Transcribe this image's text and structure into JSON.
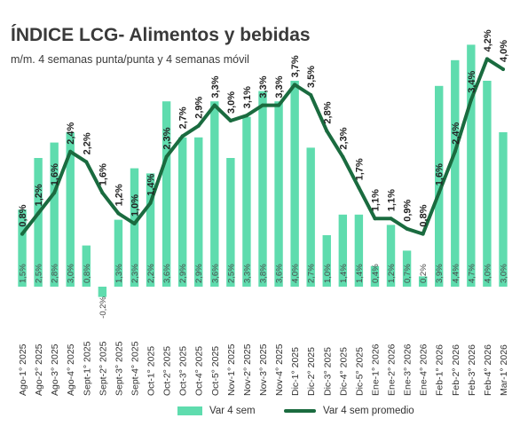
{
  "title": "ÍNDICE LCG- Alimentos y bebidas",
  "subtitle": "m/m. 4 semanas punta/punta y 4 semanas móvil",
  "colors": {
    "bar": "#5fdcae",
    "line": "#1a6b3f",
    "text": "#333333"
  },
  "chart_data": {
    "type": "bar",
    "categories": [
      "Ago-1° 2025",
      "Ago-2° 2025",
      "Ago-3° 2025",
      "Ago-4° 2025",
      "Sept-1° 2025",
      "Sept-2° 2025",
      "Sept-3° 2025",
      "Sept-4° 2025",
      "Oct-1° 2025",
      "Oct-2° 2025",
      "Oct-3° 2025",
      "Oct-4° 2025",
      "Oct-5° 2025",
      "Nov-1° 2025",
      "Nov-2° 2025",
      "Nov-3° 2025",
      "Nov-4° 2025",
      "Dic-1° 2025",
      "Dic-2° 2025",
      "Dic-3° 2025",
      "Dic-4° 2025",
      "Dic-5° 2025",
      "Ene-1° 2026",
      "Ene-2° 2026",
      "Ene-3° 2026",
      "Ene-4° 2026",
      "Feb-1° 2026",
      "Feb-2° 2026",
      "Feb-3° 2026",
      "Feb-4° 2026",
      "Mar-1° 2026"
    ],
    "series": [
      {
        "name": "Var 4 sem",
        "type": "bar",
        "values": [
          1.5,
          2.5,
          2.8,
          3.0,
          0.8,
          -0.2,
          1.3,
          2.3,
          2.2,
          3.6,
          2.9,
          2.9,
          3.6,
          2.5,
          3.3,
          3.8,
          3.6,
          4.0,
          2.7,
          1.0,
          1.4,
          1.4,
          0.4,
          1.2,
          0.7,
          0.2,
          3.9,
          4.4,
          4.7,
          4.0,
          3.0
        ],
        "labels": [
          "1,5%",
          "2,5%",
          "2,8%",
          "3,0%",
          "0,8%",
          "-0,2%",
          "1,3%",
          "2,3%",
          "2,2%",
          "3,6%",
          "2,9%",
          "2,9%",
          "3,6%",
          "2,5%",
          "3,3%",
          "3,8%",
          "3,6%",
          "4,0%",
          "2,7%",
          "1,0%",
          "1,4%",
          "1,4%",
          "0,4%",
          "1,2%",
          "0,7%",
          "0,2%",
          "3,9%",
          "4,4%",
          "4,7%",
          "4,0%",
          "3,0%"
        ]
      },
      {
        "name": "Var 4 sem promedio",
        "type": "line",
        "values": [
          0.8,
          1.2,
          1.6,
          2.4,
          2.2,
          1.6,
          1.2,
          1.0,
          1.4,
          2.3,
          2.7,
          2.9,
          3.3,
          3.0,
          3.1,
          3.3,
          3.3,
          3.7,
          3.5,
          2.8,
          2.3,
          1.7,
          1.1,
          1.1,
          0.9,
          0.8,
          1.6,
          2.4,
          3.4,
          4.2,
          4.0
        ],
        "labels": [
          "0,8%",
          "1,2%",
          "1,6%",
          "2,4%",
          "2,2%",
          "1,6%",
          "1,2%",
          "1,0%",
          "1,4%",
          "2,3%",
          "2,7%",
          "2,9%",
          "3,3%",
          "3,0%",
          "3,1%",
          "3,3%",
          "3,3%",
          "3,7%",
          "3,5%",
          "2,8%",
          "2,3%",
          "1,7%",
          "1,1%",
          "1,1%",
          "0,9%",
          "0,8%",
          "1,6%",
          "2,4%",
          "3,4%",
          "4,2%",
          "4,0%"
        ]
      }
    ],
    "legend": [
      "Var 4 sem",
      "Var 4 sem promedio"
    ],
    "legend_position": "bottom",
    "grid": false
  }
}
